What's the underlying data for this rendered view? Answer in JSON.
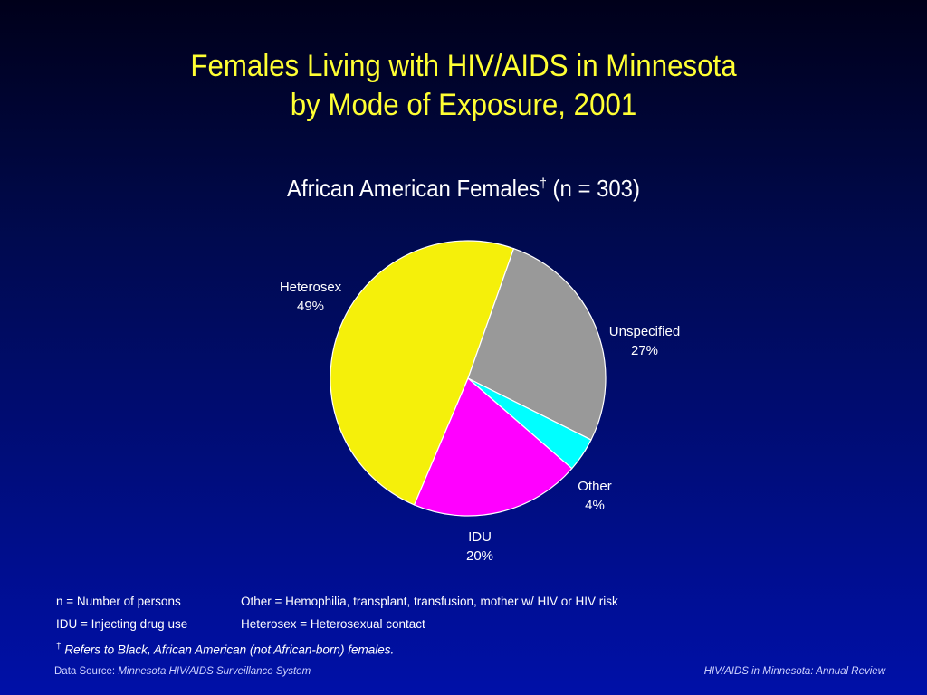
{
  "title": {
    "line1": "Females Living with HIV/AIDS in Minnesota",
    "line2": "by Mode of Exposure, 2001"
  },
  "subtitle": {
    "text": "African American Females",
    "mark": "†",
    "count": " (n = 303)"
  },
  "colors": {
    "title": "#ffff33",
    "Heterosex": "#f5f00a",
    "Unspecified": "#999999",
    "Other": "#00ffff",
    "IDU": "#ff00ff",
    "slice_border": "#ffffff"
  },
  "chart_data": {
    "type": "pie",
    "title": "African American Females† (n = 303)",
    "slices": [
      {
        "label": "Heterosex",
        "value": 49,
        "display": "49%"
      },
      {
        "label": "Unspecified",
        "value": 27,
        "display": "27%"
      },
      {
        "label": "Other",
        "value": 4,
        "display": "4%"
      },
      {
        "label": "IDU",
        "value": 20,
        "display": "20%"
      }
    ]
  },
  "notes": {
    "n_def": "n = Number of persons",
    "other_def": "Other = Hemophilia, transplant, transfusion, mother w/ HIV or HIV risk",
    "idu_def": "IDU = Injecting drug use",
    "hetero_def": "Heterosex = Heterosexual contact",
    "dagger": "†",
    "dagger_text": "Refers to Black, African American (not African-born) females."
  },
  "footer": {
    "source_label": "Data Source:  ",
    "source": "Minnesota HIV/AIDS Surveillance System",
    "right": "HIV/AIDS in Minnesota: Annual Review"
  }
}
